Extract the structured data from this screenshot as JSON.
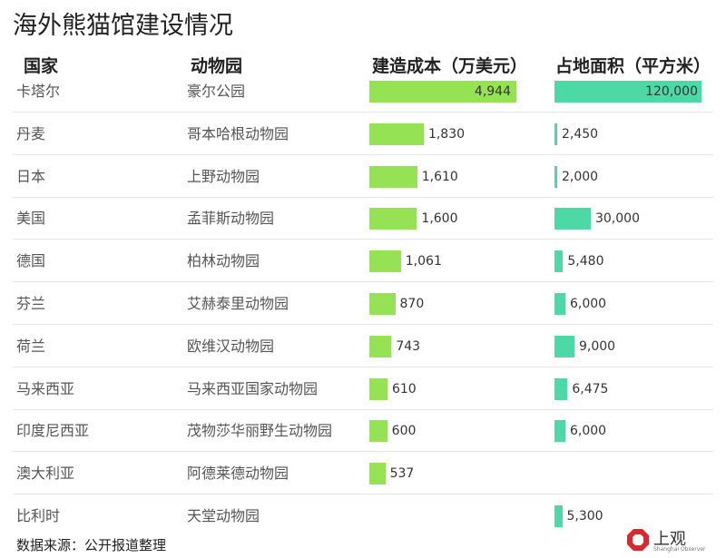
{
  "title": "海外熊猫馆建设情况",
  "headers": {
    "country": "国家",
    "zoo": "动物园",
    "cost": "建造成本（万美元）",
    "area": "占地面积（平方米）"
  },
  "colors": {
    "cost_bar": "#95e255",
    "area_bar": "#4dd9a5"
  },
  "chart_data": {
    "type": "table",
    "columns": [
      "国家",
      "动物园",
      "建造成本（万美元）",
      "占地面积（平方米）"
    ],
    "rows": [
      {
        "country": "卡塔尔",
        "zoo": "豪尔公园",
        "cost": 4944,
        "cost_label": "4,944",
        "area": 120000,
        "area_label": "120,000"
      },
      {
        "country": "丹麦",
        "zoo": "哥本哈根动物园",
        "cost": 1830,
        "cost_label": "1,830",
        "area": 2450,
        "area_label": "2,450"
      },
      {
        "country": "日本",
        "zoo": "上野动物园",
        "cost": 1610,
        "cost_label": "1,610",
        "area": 2000,
        "area_label": "2,000"
      },
      {
        "country": "美国",
        "zoo": "孟菲斯动物园",
        "cost": 1600,
        "cost_label": "1,600",
        "area": 30000,
        "area_label": "30,000"
      },
      {
        "country": "德国",
        "zoo": "柏林动物园",
        "cost": 1061,
        "cost_label": "1,061",
        "area": 5480,
        "area_label": "5,480"
      },
      {
        "country": "芬兰",
        "zoo": "艾赫泰里动物园",
        "cost": 870,
        "cost_label": "870",
        "area": 6000,
        "area_label": "6,000"
      },
      {
        "country": "荷兰",
        "zoo": "欧维汉动物园",
        "cost": 743,
        "cost_label": "743",
        "area": 9000,
        "area_label": "9,000"
      },
      {
        "country": "马来西亚",
        "zoo": "马来西亚国家动物园",
        "cost": 610,
        "cost_label": "610",
        "area": 6475,
        "area_label": "6,475"
      },
      {
        "country": "印度尼西亚",
        "zoo": "茂物莎华丽野生动物园",
        "cost": 600,
        "cost_label": "600",
        "area": 6000,
        "area_label": "6,000"
      },
      {
        "country": "澳大利亚",
        "zoo": "阿德莱德动物园",
        "cost": 537,
        "cost_label": "537",
        "area": null,
        "area_label": ""
      },
      {
        "country": "比利时",
        "zoo": "天堂动物园",
        "cost": null,
        "cost_label": "",
        "area": 5300,
        "area_label": "5,300"
      }
    ]
  },
  "source": "数据来源：公开报道整理",
  "logo": {
    "text": "上观",
    "subtitle": "Shanghai Observer"
  }
}
